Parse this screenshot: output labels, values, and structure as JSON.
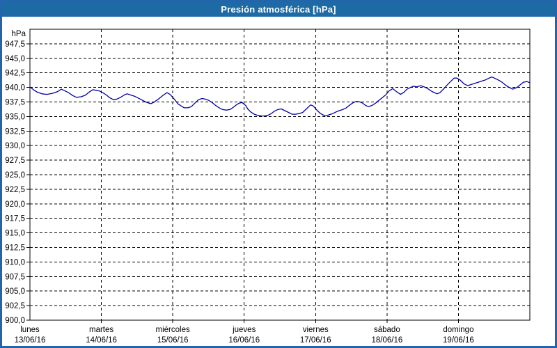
{
  "header": {
    "title": "Presión atmosférica [hPa]"
  },
  "colors": {
    "frame": "#2464ad",
    "header_bg": "#1d6aa5",
    "header_text": "#ffffff",
    "plot_border": "#000000",
    "grid": "#000000",
    "line": "#0000a8",
    "text": "#000000",
    "background": "#ffffff"
  },
  "chart_data": {
    "type": "line",
    "title": "Presión atmosférica [hPa]",
    "ylabel": "hPa",
    "xlabel": "",
    "ylim": [
      900,
      950
    ],
    "y_tick_step": 2.5,
    "grid": true,
    "legend_position": "none",
    "y_ticks": [
      947.5,
      945.0,
      942.5,
      940.0,
      937.5,
      935.0,
      932.5,
      930.0,
      927.5,
      925.0,
      922.5,
      920.0,
      917.5,
      915.0,
      912.5,
      910.0,
      907.5,
      905.0,
      902.5,
      900.0
    ],
    "y_tick_labels": [
      "947,5",
      "945,0",
      "942,5",
      "940,0",
      "937,5",
      "935,0",
      "932,5",
      "930,0",
      "927,5",
      "925,0",
      "922,5",
      "920,0",
      "917,5",
      "915,0",
      "912,5",
      "910,0",
      "907,5",
      "905,0",
      "902,5",
      "900,0"
    ],
    "x_range_days": 7,
    "x_categories": [
      {
        "name": "lunes",
        "date": "13/06/16"
      },
      {
        "name": "martes",
        "date": "14/06/16"
      },
      {
        "name": "miércoles",
        "date": "15/06/16"
      },
      {
        "name": "jueves",
        "date": "16/06/16"
      },
      {
        "name": "viernes",
        "date": "17/06/16"
      },
      {
        "name": "sábado",
        "date": "18/06/16"
      },
      {
        "name": "domingo",
        "date": "19/06/16"
      }
    ],
    "series": [
      {
        "name": "Presión atmosférica",
        "unit": "hPa",
        "points": [
          [
            0.0,
            940.1
          ],
          [
            0.05,
            939.6
          ],
          [
            0.1,
            939.2
          ],
          [
            0.17,
            938.9
          ],
          [
            0.24,
            938.8
          ],
          [
            0.32,
            939.0
          ],
          [
            0.39,
            939.3
          ],
          [
            0.44,
            939.7
          ],
          [
            0.49,
            939.4
          ],
          [
            0.54,
            939.1
          ],
          [
            0.6,
            938.6
          ],
          [
            0.65,
            938.3
          ],
          [
            0.72,
            938.4
          ],
          [
            0.78,
            938.7
          ],
          [
            0.83,
            939.2
          ],
          [
            0.88,
            939.6
          ],
          [
            0.93,
            939.5
          ],
          [
            0.97,
            939.4
          ],
          [
            1.02,
            939.1
          ],
          [
            1.07,
            938.7
          ],
          [
            1.12,
            938.2
          ],
          [
            1.17,
            937.9
          ],
          [
            1.22,
            938.0
          ],
          [
            1.27,
            938.3
          ],
          [
            1.32,
            938.7
          ],
          [
            1.36,
            938.9
          ],
          [
            1.41,
            938.7
          ],
          [
            1.46,
            938.5
          ],
          [
            1.51,
            938.2
          ],
          [
            1.56,
            937.9
          ],
          [
            1.62,
            937.5
          ],
          [
            1.69,
            937.2
          ],
          [
            1.73,
            937.4
          ],
          [
            1.8,
            938.0
          ],
          [
            1.87,
            938.7
          ],
          [
            1.92,
            939.1
          ],
          [
            1.96,
            938.8
          ],
          [
            2.0,
            938.3
          ],
          [
            2.04,
            937.7
          ],
          [
            2.07,
            937.2
          ],
          [
            2.12,
            936.8
          ],
          [
            2.16,
            936.5
          ],
          [
            2.21,
            936.5
          ],
          [
            2.26,
            936.7
          ],
          [
            2.31,
            937.3
          ],
          [
            2.36,
            937.9
          ],
          [
            2.41,
            938.1
          ],
          [
            2.45,
            938.0
          ],
          [
            2.5,
            937.8
          ],
          [
            2.55,
            937.4
          ],
          [
            2.6,
            936.9
          ],
          [
            2.65,
            936.5
          ],
          [
            2.7,
            936.2
          ],
          [
            2.75,
            936.1
          ],
          [
            2.8,
            936.2
          ],
          [
            2.85,
            936.6
          ],
          [
            2.89,
            937.0
          ],
          [
            2.93,
            937.3
          ],
          [
            2.97,
            937.4
          ],
          [
            3.02,
            936.9
          ],
          [
            3.05,
            936.3
          ],
          [
            3.09,
            935.8
          ],
          [
            3.14,
            935.4
          ],
          [
            3.19,
            935.2
          ],
          [
            3.24,
            935.1
          ],
          [
            3.28,
            935.1
          ],
          [
            3.33,
            935.2
          ],
          [
            3.38,
            935.5
          ],
          [
            3.42,
            935.9
          ],
          [
            3.47,
            936.2
          ],
          [
            3.52,
            936.3
          ],
          [
            3.57,
            936.0
          ],
          [
            3.62,
            935.7
          ],
          [
            3.67,
            935.4
          ],
          [
            3.72,
            935.4
          ],
          [
            3.77,
            935.5
          ],
          [
            3.82,
            935.7
          ],
          [
            3.87,
            936.3
          ],
          [
            3.93,
            937.0
          ],
          [
            3.97,
            936.8
          ],
          [
            4.01,
            936.2
          ],
          [
            4.06,
            935.6
          ],
          [
            4.1,
            935.3
          ],
          [
            4.14,
            935.1
          ],
          [
            4.19,
            935.3
          ],
          [
            4.24,
            935.5
          ],
          [
            4.29,
            935.8
          ],
          [
            4.33,
            936.0
          ],
          [
            4.38,
            936.2
          ],
          [
            4.43,
            936.5
          ],
          [
            4.48,
            937.0
          ],
          [
            4.53,
            937.4
          ],
          [
            4.57,
            937.6
          ],
          [
            4.62,
            937.5
          ],
          [
            4.66,
            937.3
          ],
          [
            4.7,
            936.9
          ],
          [
            4.74,
            936.7
          ],
          [
            4.79,
            936.9
          ],
          [
            4.84,
            937.3
          ],
          [
            4.88,
            937.7
          ],
          [
            4.93,
            938.2
          ],
          [
            4.98,
            938.7
          ],
          [
            5.03,
            939.4
          ],
          [
            5.08,
            939.8
          ],
          [
            5.13,
            939.3
          ],
          [
            5.19,
            938.8
          ],
          [
            5.24,
            939.2
          ],
          [
            5.28,
            939.7
          ],
          [
            5.33,
            940.0
          ],
          [
            5.37,
            940.2
          ],
          [
            5.42,
            940.1
          ],
          [
            5.47,
            940.3
          ],
          [
            5.52,
            940.1
          ],
          [
            5.57,
            939.8
          ],
          [
            5.63,
            939.3
          ],
          [
            5.7,
            938.9
          ],
          [
            5.74,
            939.1
          ],
          [
            5.79,
            939.7
          ],
          [
            5.84,
            940.4
          ],
          [
            5.89,
            941.0
          ],
          [
            5.94,
            941.6
          ],
          [
            5.98,
            941.6
          ],
          [
            6.03,
            941.2
          ],
          [
            6.08,
            940.6
          ],
          [
            6.13,
            940.3
          ],
          [
            6.18,
            940.5
          ],
          [
            6.23,
            940.7
          ],
          [
            6.28,
            940.9
          ],
          [
            6.33,
            941.1
          ],
          [
            6.38,
            941.3
          ],
          [
            6.43,
            941.6
          ],
          [
            6.47,
            941.8
          ],
          [
            6.52,
            941.5
          ],
          [
            6.57,
            941.2
          ],
          [
            6.61,
            940.9
          ],
          [
            6.66,
            940.4
          ],
          [
            6.71,
            940.0
          ],
          [
            6.76,
            939.7
          ],
          [
            6.82,
            940.0
          ],
          [
            6.86,
            940.4
          ],
          [
            6.91,
            940.9
          ],
          [
            6.96,
            941.0
          ],
          [
            7.0,
            940.8
          ]
        ]
      }
    ]
  }
}
